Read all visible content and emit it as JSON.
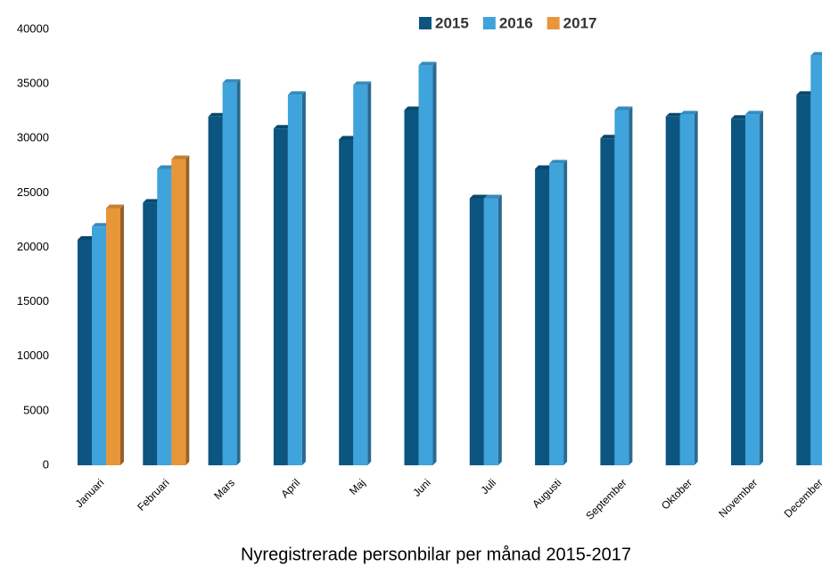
{
  "chart_data": {
    "type": "bar",
    "title": "Nyregistrerade personbilar per månad 2015-2017",
    "categories": [
      "Januari",
      "Februari",
      "Mars",
      "April",
      "Maj",
      "Juni",
      "Juli",
      "Augusti",
      "September",
      "Oktober",
      "November",
      "December"
    ],
    "series": [
      {
        "name": "2015",
        "color": "#0b5580",
        "values": [
          20700,
          24100,
          32000,
          30900,
          29900,
          32600,
          24500,
          27200,
          30000,
          32000,
          31800,
          34000
        ]
      },
      {
        "name": "2016",
        "color": "#3fa3dc",
        "values": [
          21900,
          27200,
          35100,
          34000,
          34900,
          36700,
          24500,
          27700,
          32600,
          32200,
          32200,
          37600
        ]
      },
      {
        "name": "2017",
        "color": "#e8963a",
        "values": [
          23600,
          28100,
          null,
          null,
          null,
          null,
          null,
          null,
          null,
          null,
          null,
          null
        ]
      }
    ],
    "ylim": [
      0,
      40000
    ],
    "yticks": [
      0,
      5000,
      10000,
      15000,
      20000,
      25000,
      30000,
      35000,
      40000
    ],
    "grid": false,
    "legend": "top"
  }
}
